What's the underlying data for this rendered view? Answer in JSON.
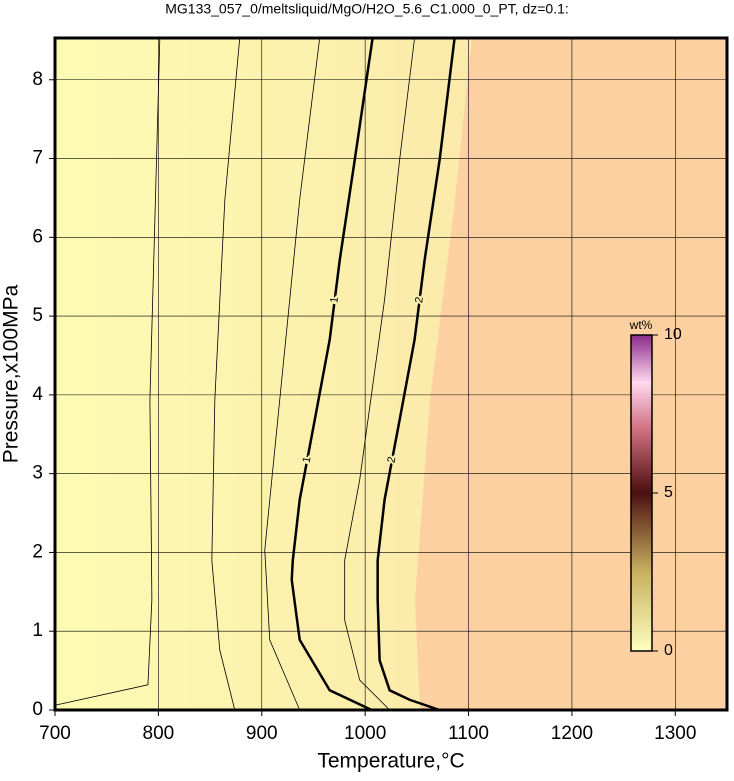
{
  "chart_data": {
    "type": "contour",
    "title": "MG133_057_0/meltsliquid/MgO/H2O_5.6_C1.000_0_PT, dz=0.1:",
    "x_label": "Temperature,°C",
    "y_label": "Pressure,x100MPa",
    "xlim": [
      700,
      1350
    ],
    "ylim": [
      0,
      8.53
    ],
    "xticks": [
      700,
      800,
      900,
      1000,
      1100,
      1200,
      1300
    ],
    "yticks": [
      0,
      1,
      2,
      3,
      4,
      5,
      6,
      7,
      8
    ],
    "grid": true,
    "series": [
      {
        "name": "1",
        "color": "#000000",
        "x": [
          1007.2,
          989.9,
          975.4,
          965.7,
          951.2,
          936.7,
          930,
          929,
          936.7,
          965.7,
          1006.3
        ],
        "y": [
          8.53,
          6.98,
          5.71,
          4.7,
          3.68,
          2.67,
          1.9,
          1.65,
          0.89,
          0.25,
          0
        ]
      },
      {
        "name": "2",
        "color": "#000000",
        "x": [
          1086.5,
          1072,
          1057.5,
          1047.8,
          1033.3,
          1018.8,
          1012.1,
          1012.1,
          1014,
          1023.7,
          1043,
          1072
        ],
        "y": [
          8.53,
          6.98,
          5.71,
          4.7,
          3.68,
          2.67,
          1.9,
          1.4,
          0.63,
          0.25,
          0.13,
          0
        ]
      }
    ],
    "contours": [
      {
        "x": [
          801.4,
          796.6,
          791.8,
          793.7,
          789.9,
          700
        ],
        "y": [
          8.53,
          6.22,
          3.94,
          1.4,
          0.32,
          0.06
        ]
      },
      {
        "x": [
          878.7,
          864.3,
          854.6,
          851.7,
          859.4,
          873.9
        ],
        "y": [
          8.53,
          6.48,
          3.94,
          1.9,
          0.76,
          0
        ]
      },
      {
        "x": [
          956.0,
          936.7,
          917.4,
          902.9,
          907.7,
          936.7
        ],
        "y": [
          8.53,
          6.48,
          3.94,
          2.03,
          0.89,
          0
        ]
      },
      {
        "x": [
          1047.8,
          1033.3,
          1018.8,
          994.7,
          980.2,
          980.2,
          994.7,
          1023.7
        ],
        "y": [
          8.53,
          6.98,
          5.21,
          2.92,
          1.9,
          1.14,
          0.38,
          0
        ]
      }
    ],
    "colorbar": {
      "label": "wt%",
      "lim": [
        0,
        10
      ],
      "ticks": [
        0,
        5,
        10
      ]
    }
  }
}
